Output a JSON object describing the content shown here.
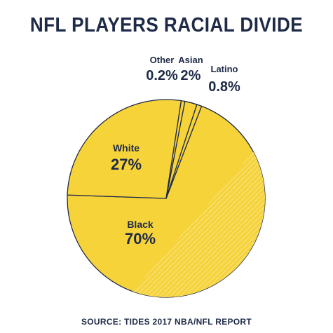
{
  "title": "NFL PLAYERS RACIAL DIVIDE",
  "source": "SOURCE: TIDES 2017 NBA/NFL REPORT",
  "colors": {
    "slice": "#f7d33a",
    "text": "#1e2a47",
    "line": "#1e2a47",
    "hatch": "#f5e9a6"
  },
  "chart_data": {
    "type": "pie",
    "slices": [
      {
        "label": "Black",
        "value_label": "70%",
        "value": 70
      },
      {
        "label": "White",
        "value_label": "27%",
        "value": 27
      },
      {
        "label": "Other",
        "value_label": "0.2%",
        "value": 0.2
      },
      {
        "label": "Asian",
        "value_label": "2%",
        "value": 2
      },
      {
        "label": "Latino",
        "value_label": "0.8%",
        "value": 0.8
      }
    ]
  }
}
